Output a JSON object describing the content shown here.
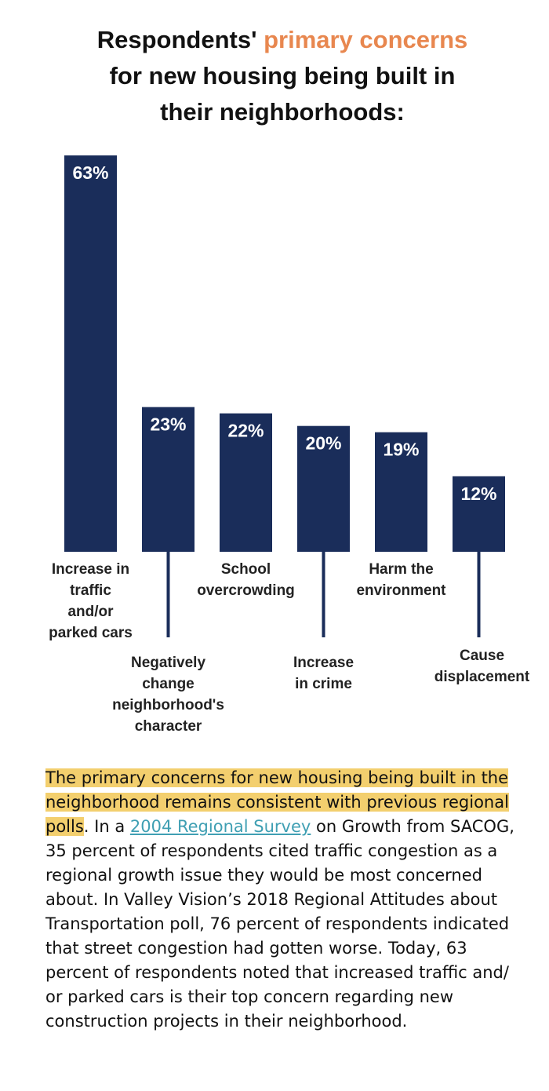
{
  "title": {
    "part1": "Respondents' ",
    "accent": "primary concerns",
    "line2": "for new housing being built in",
    "line3": "their neighborhoods:"
  },
  "colors": {
    "bar": "#1a2d5a",
    "accent": "#e8874f",
    "highlight": "#f3cf6e",
    "link": "#3f9fb3"
  },
  "chart_data": {
    "type": "bar",
    "title": "Respondents' primary concerns for new housing being built in their neighborhoods:",
    "categories": [
      "Increase in traffic and/or parked cars",
      "Negatively change neighborhood's character",
      "School overcrowding",
      "Increase in crime",
      "Harm the environment",
      "Cause displacement"
    ],
    "category_lines": [
      [
        "Increase in",
        "traffic",
        "and/or",
        "parked cars"
      ],
      [
        "Negatively",
        "change",
        "neighborhood's",
        "character"
      ],
      [
        "School",
        "overcrowding"
      ],
      [
        "Increase",
        "in crime"
      ],
      [
        "Harm the",
        "environment"
      ],
      [
        "Cause",
        "displacement"
      ]
    ],
    "values": [
      63,
      23,
      22,
      20,
      19,
      12
    ],
    "value_labels": [
      "63%",
      "23%",
      "22%",
      "20%",
      "19%",
      "12%"
    ],
    "ylim": [
      0,
      63
    ],
    "xlabel": "",
    "ylabel": "",
    "grid": false
  },
  "body": {
    "highlight": "The primary concerns for new housing being built in the neighborhood remains consistent with previous regional polls",
    "after_highlight": ". In a ",
    "link": "2004 Regional Survey",
    "rest": " on Growth from SACOG, 35 percent of respondents cited traffic congestion as a regional growth issue they would be most concerned about. In Valley Vision’s 2018 Regional Attitudes about Transportation poll, 76 percent of respondents indicated that street congestion had gotten worse. Today, 63 percent of respondents noted that increased traffic and/ or parked cars is their top concern regarding new construction projects in their neighborhood."
  }
}
